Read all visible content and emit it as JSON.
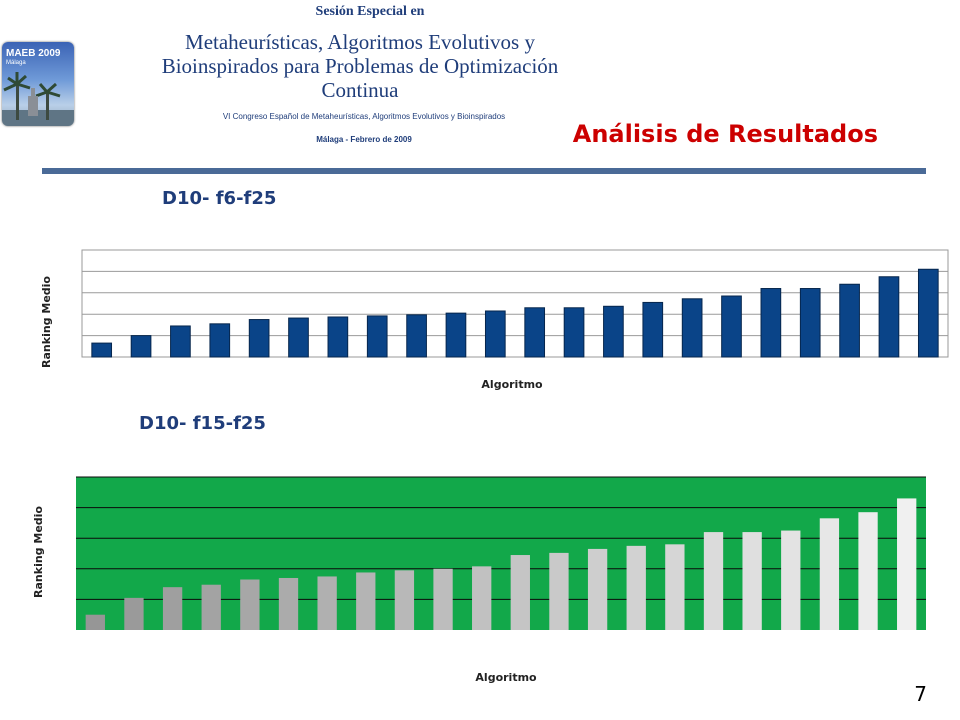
{
  "header": {
    "logo_title": "MAEB 2009",
    "logo_subtitle": "Málaga",
    "session_line1": "Sesión Especial en",
    "session_title_line1": "Metaheurísticas, Algoritmos Evolutivos y",
    "session_title_line2": "Bioinspirados para Problemas de Optimización",
    "session_title_line3": "Continua",
    "congress": "VI Congreso Español de Metaheurísticas, Algoritmos Evolutivos y Bioinspirados",
    "date": "Málaga - Febrero de 2009",
    "slide_title": "Análisis de Resultados"
  },
  "colors": {
    "title_red": "#cc0000",
    "heading_blue": "#1f3d7a",
    "rule": "#4a6a97",
    "bar_blue": "#0a4488",
    "plot_green": "#12a84a"
  },
  "chart_data": [
    {
      "type": "bar",
      "heading": "D10- f6-f25",
      "xlabel": "Algoritmo",
      "ylabel": "Ranking Medio",
      "ylim": [
        0,
        5
      ],
      "grid": true,
      "values": [
        0.65,
        1.0,
        1.45,
        1.55,
        1.75,
        1.82,
        1.87,
        1.92,
        1.97,
        2.05,
        2.15,
        2.3,
        2.3,
        2.37,
        2.55,
        2.72,
        2.85,
        3.2,
        3.2,
        3.4,
        3.75,
        4.1
      ]
    },
    {
      "type": "bar",
      "heading": "D10- f15-f25",
      "xlabel": "Algoritmo",
      "ylabel": "Ranking Medio",
      "ylim": [
        0,
        5
      ],
      "grid": true,
      "values": [
        0.5,
        1.05,
        1.4,
        1.48,
        1.65,
        1.7,
        1.75,
        1.88,
        1.95,
        2.0,
        2.08,
        2.45,
        2.52,
        2.65,
        2.75,
        2.8,
        3.2,
        3.2,
        3.25,
        3.65,
        3.85,
        4.3
      ]
    }
  ],
  "page_number": "7"
}
